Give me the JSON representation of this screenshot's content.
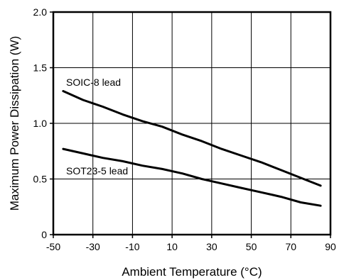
{
  "chart_data": {
    "type": "line",
    "title": "",
    "xlabel": "Ambient Temperature (°C)",
    "ylabel": "Maximum Power Dissipation (W)",
    "xlim": [
      -50,
      90
    ],
    "ylim": [
      0,
      2.0
    ],
    "grid": true,
    "x_ticks": [
      -50,
      -30,
      -10,
      10,
      30,
      50,
      70,
      90
    ],
    "x_tick_labels": [
      "-50",
      "-30",
      "-10",
      "10",
      "30",
      "50",
      "70",
      "90"
    ],
    "y_ticks": [
      0,
      0.5,
      1.0,
      1.5,
      2.0
    ],
    "y_tick_labels": [
      "0",
      "0.5",
      "1.0",
      "1.5",
      "2.0"
    ],
    "series": [
      {
        "name": "SOIC-8 lead",
        "x": [
          -45,
          -35,
          -25,
          -15,
          -5,
          5,
          15,
          25,
          35,
          45,
          55,
          65,
          75,
          85
        ],
        "y": [
          1.29,
          1.21,
          1.15,
          1.08,
          1.02,
          0.97,
          0.9,
          0.84,
          0.77,
          0.71,
          0.65,
          0.58,
          0.51,
          0.44
        ]
      },
      {
        "name": "SOT23-5 lead",
        "x": [
          -45,
          -35,
          -25,
          -15,
          -5,
          5,
          15,
          25,
          35,
          45,
          55,
          65,
          75,
          85
        ],
        "y": [
          0.77,
          0.73,
          0.69,
          0.66,
          0.62,
          0.59,
          0.55,
          0.5,
          0.46,
          0.42,
          0.38,
          0.34,
          0.29,
          0.26
        ]
      }
    ]
  }
}
